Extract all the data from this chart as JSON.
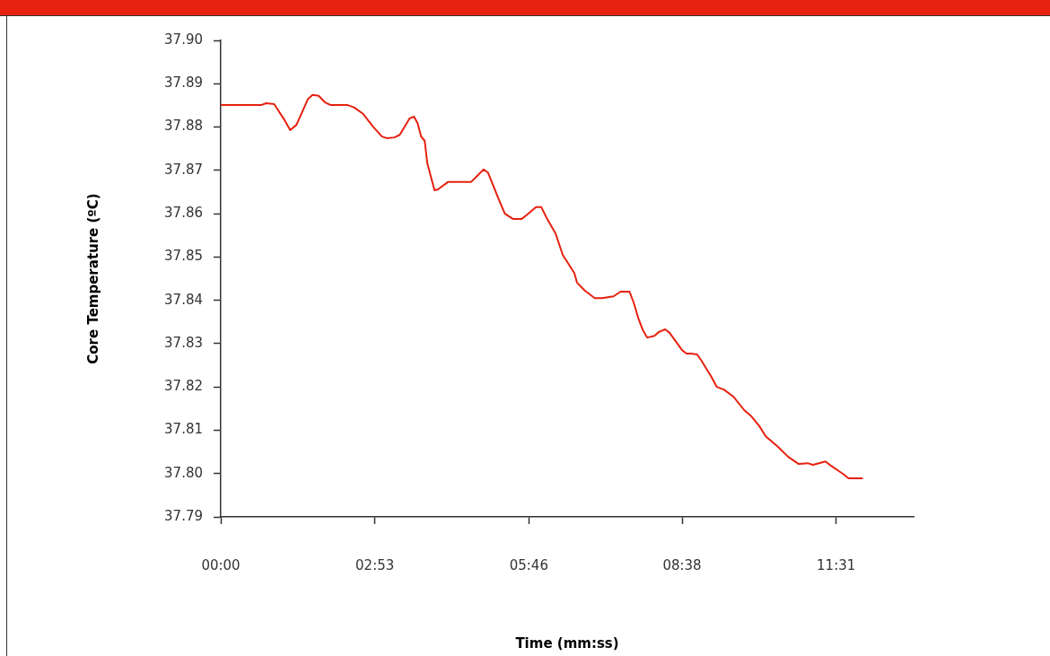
{
  "chart_data": {
    "type": "line",
    "xlabel": "Time (mm:ss)",
    "ylabel": "Core Temperature (ºC)",
    "x": [
      0,
      46,
      51,
      60,
      71,
      78,
      85,
      98,
      103,
      110,
      117,
      123,
      142,
      150,
      160,
      171,
      181,
      187,
      195,
      201,
      212,
      217,
      221,
      225,
      229,
      232,
      240,
      244,
      255,
      281,
      286,
      295,
      300,
      313,
      319,
      328,
      338,
      343,
      354,
      360,
      366,
      376,
      384,
      397,
      400,
      409,
      420,
      428,
      441,
      449,
      459,
      464,
      469,
      474,
      479,
      487,
      492,
      499,
      504,
      518,
      523,
      528,
      535,
      540,
      551,
      557,
      565,
      576,
      588,
      596,
      605,
      612,
      625,
      637,
      649,
      659,
      665,
      679,
      684,
      699,
      705,
      721
    ],
    "series": [
      {
        "color": "#e5210f",
        "values": [
          37.8851,
          37.8851,
          37.8855,
          37.8853,
          37.8818,
          37.8793,
          37.8805,
          37.8865,
          37.8874,
          37.8872,
          37.8857,
          37.8851,
          37.8851,
          37.8845,
          37.883,
          37.8801,
          37.8778,
          37.8774,
          37.8776,
          37.8782,
          37.882,
          37.8824,
          37.8809,
          37.8778,
          37.8768,
          37.8716,
          37.8654,
          37.8656,
          37.8673,
          37.8673,
          37.8683,
          37.8702,
          37.8695,
          37.8629,
          37.86,
          37.8588,
          37.8588,
          37.8596,
          37.8615,
          37.8615,
          37.859,
          37.8554,
          37.8505,
          37.8463,
          37.8441,
          37.8422,
          37.8405,
          37.8405,
          37.8409,
          37.842,
          37.842,
          37.8393,
          37.8358,
          37.8331,
          37.8314,
          37.8318,
          37.8327,
          37.8333,
          37.8325,
          37.8285,
          37.8277,
          37.8277,
          37.8275,
          37.826,
          37.8223,
          37.82,
          37.8194,
          37.8177,
          37.8146,
          37.8132,
          37.8109,
          37.8086,
          37.8063,
          37.8039,
          37.8022,
          37.8024,
          37.802,
          37.8028,
          37.802,
          37.7999,
          37.7989,
          37.7989
        ]
      }
    ],
    "xlim": [
      0,
      778
    ],
    "xticks": [
      {
        "value": 0,
        "label": "00:00"
      },
      {
        "value": 173,
        "label": "02:53"
      },
      {
        "value": 346,
        "label": "05:46"
      },
      {
        "value": 518,
        "label": "08:38"
      },
      {
        "value": 691,
        "label": "11:31"
      }
    ],
    "ylim": [
      37.79,
      37.9
    ],
    "yticks": [
      {
        "value": 37.79,
        "label": "37.79"
      },
      {
        "value": 37.8,
        "label": "37.80"
      },
      {
        "value": 37.81,
        "label": "37.81"
      },
      {
        "value": 37.82,
        "label": "37.82"
      },
      {
        "value": 37.83,
        "label": "37.83"
      },
      {
        "value": 37.84,
        "label": "37.84"
      },
      {
        "value": 37.85,
        "label": "37.85"
      },
      {
        "value": 37.86,
        "label": "37.86"
      },
      {
        "value": 37.87,
        "label": "37.87"
      },
      {
        "value": 37.88,
        "label": "37.88"
      },
      {
        "value": 37.89,
        "label": "37.89"
      },
      {
        "value": 37.9,
        "label": "37.90"
      }
    ],
    "grid": false,
    "legend": false,
    "marker": "none",
    "line_style": "solid"
  }
}
